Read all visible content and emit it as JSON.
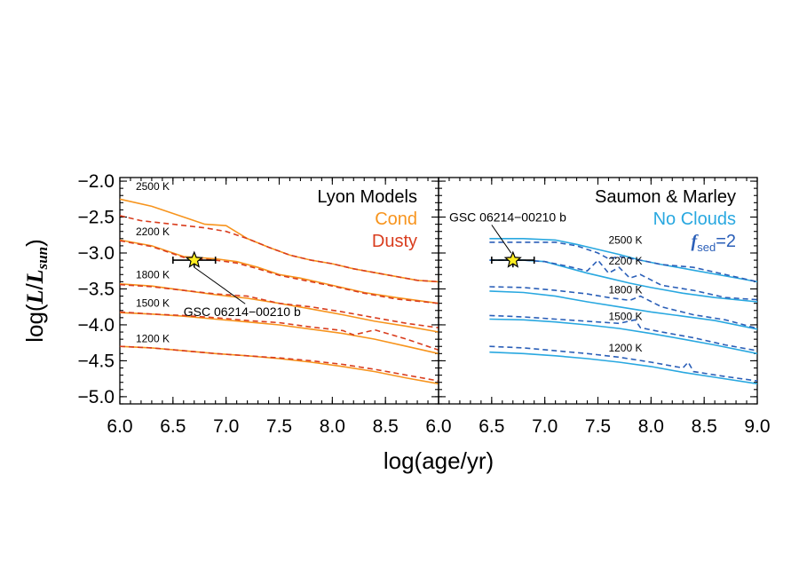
{
  "chart_data": {
    "type": "line",
    "xlabel": "log(age/yr)",
    "ylabel": "log(L/L_sun)",
    "ylabel_parts": {
      "prefix": "log(",
      "L": "L",
      "slash": "/",
      "L2": "L",
      "sub": "sun",
      "suffix": ")"
    },
    "ylim": [
      -5.1,
      -1.95
    ],
    "yticks": [
      -2.0,
      -2.5,
      -3.0,
      -3.5,
      -4.0,
      -4.5,
      -5.0
    ],
    "ytick_labels": [
      "−2.0",
      "−2.5",
      "−3.0",
      "−3.5",
      "−4.0",
      "−4.5",
      "−5.0"
    ],
    "panels": [
      {
        "title": "Lyon Models",
        "legend": [
          {
            "label": "Cond",
            "color": "#f7941d",
            "style": "solid"
          },
          {
            "label": "Dusty",
            "color": "#d93d1e",
            "style": "dashed"
          }
        ],
        "xlim": [
          6.0,
          9.0
        ],
        "xticks": [
          6.0,
          6.5,
          7.0,
          7.5,
          8.0,
          8.5
        ],
        "xtick_labels": [
          "6.0",
          "6.5",
          "7.0",
          "7.5",
          "8.0",
          "8.5"
        ],
        "temperature_labels": [
          {
            "text": "2500 K",
            "x": 6.15,
            "y": -2.12
          },
          {
            "text": "2200 K",
            "x": 6.15,
            "y": -2.75
          },
          {
            "text": "1800 K",
            "x": 6.15,
            "y": -3.35
          },
          {
            "text": "1500 K",
            "x": 6.15,
            "y": -3.75
          },
          {
            "text": "1200 K",
            "x": 6.15,
            "y": -4.24
          }
        ],
        "object": {
          "name": "GSC 06214−00210 b",
          "x": 6.7,
          "y": -3.1,
          "xerr": 0.2,
          "yerr": 0.1,
          "label_x": 6.6,
          "label_y": -3.88
        },
        "series": [
          {
            "name": "Cond",
            "temp": "2500 K",
            "style": "solid",
            "color": "#f7941d",
            "x": [
              6.0,
              6.3,
              6.6,
              6.8,
              7.0,
              7.2,
              7.4,
              7.6,
              7.8,
              8.0,
              8.2,
              8.5,
              8.8,
              9.0
            ],
            "y": [
              -2.25,
              -2.35,
              -2.5,
              -2.6,
              -2.62,
              -2.8,
              -2.92,
              -3.03,
              -3.1,
              -3.15,
              -3.22,
              -3.3,
              -3.38,
              -3.4
            ]
          },
          {
            "name": "Dusty",
            "temp": "2500 K",
            "style": "dashed",
            "color": "#d93d1e",
            "x": [
              6.0,
              6.2,
              6.5,
              6.8,
              7.0,
              7.2,
              7.4,
              7.6,
              7.8,
              8.0,
              8.2,
              8.5,
              8.8,
              9.0
            ],
            "y": [
              -2.48,
              -2.55,
              -2.6,
              -2.65,
              -2.7,
              -2.8,
              -2.92,
              -3.03,
              -3.1,
              -3.15,
              -3.22,
              -3.3,
              -3.38,
              -3.4
            ]
          },
          {
            "name": "Cond",
            "temp": "2200 K",
            "style": "solid",
            "color": "#f7941d",
            "x": [
              6.0,
              6.3,
              6.6,
              6.9,
              7.1,
              7.3,
              7.5,
              7.7,
              8.0,
              8.3,
              8.6,
              9.0
            ],
            "y": [
              -2.82,
              -2.9,
              -3.05,
              -3.08,
              -3.12,
              -3.2,
              -3.3,
              -3.35,
              -3.45,
              -3.55,
              -3.62,
              -3.7
            ]
          },
          {
            "name": "Dusty",
            "temp": "2200 K",
            "style": "dashed",
            "color": "#d93d1e",
            "x": [
              6.0,
              6.3,
              6.6,
              6.9,
              7.1,
              7.3,
              7.5,
              7.7,
              8.0,
              8.3,
              8.6,
              9.0
            ],
            "y": [
              -2.83,
              -2.91,
              -3.06,
              -3.1,
              -3.14,
              -3.22,
              -3.31,
              -3.37,
              -3.46,
              -3.56,
              -3.64,
              -3.7
            ]
          },
          {
            "name": "Cond",
            "temp": "1800 K",
            "style": "solid",
            "color": "#f7941d",
            "x": [
              6.0,
              6.3,
              6.6,
              6.9,
              7.2,
              7.5,
              7.8,
              8.1,
              8.4,
              8.7,
              9.0
            ],
            "y": [
              -3.43,
              -3.46,
              -3.52,
              -3.58,
              -3.63,
              -3.7,
              -3.78,
              -3.86,
              -3.95,
              -4.02,
              -4.1
            ]
          },
          {
            "name": "Dusty",
            "temp": "1800 K",
            "style": "dashed",
            "color": "#d93d1e",
            "x": [
              6.0,
              6.3,
              6.6,
              6.9,
              7.2,
              7.5,
              7.8,
              8.1,
              8.4,
              8.7,
              9.0
            ],
            "y": [
              -3.44,
              -3.47,
              -3.52,
              -3.57,
              -3.6,
              -3.7,
              -3.75,
              -3.82,
              -3.9,
              -3.98,
              -4.04
            ]
          },
          {
            "name": "Cond",
            "temp": "1500 K",
            "style": "solid",
            "color": "#f7941d",
            "x": [
              6.0,
              6.3,
              6.6,
              6.9,
              7.2,
              7.5,
              7.8,
              8.1,
              8.4,
              8.7,
              9.0
            ],
            "y": [
              -3.83,
              -3.85,
              -3.88,
              -3.92,
              -3.96,
              -4.0,
              -4.06,
              -4.12,
              -4.2,
              -4.3,
              -4.4
            ]
          },
          {
            "name": "Dusty",
            "temp": "1500 K",
            "style": "dashed",
            "color": "#d93d1e",
            "x": [
              6.0,
              6.3,
              6.6,
              6.9,
              7.2,
              7.5,
              7.8,
              8.1,
              8.2,
              8.4,
              8.7,
              9.0
            ],
            "y": [
              -3.82,
              -3.85,
              -3.87,
              -3.9,
              -3.94,
              -3.97,
              -4.03,
              -4.08,
              -4.14,
              -4.07,
              -4.2,
              -4.35
            ]
          },
          {
            "name": "Cond",
            "temp": "1200 K",
            "style": "solid",
            "color": "#f7941d",
            "x": [
              6.0,
              6.3,
              6.6,
              6.9,
              7.2,
              7.5,
              7.8,
              8.1,
              8.4,
              8.7,
              9.0
            ],
            "y": [
              -4.3,
              -4.32,
              -4.36,
              -4.4,
              -4.43,
              -4.47,
              -4.52,
              -4.58,
              -4.65,
              -4.74,
              -4.82
            ]
          },
          {
            "name": "Dusty",
            "temp": "1200 K",
            "style": "dashed",
            "color": "#d93d1e",
            "x": [
              6.0,
              6.3,
              6.6,
              6.9,
              7.2,
              7.5,
              7.8,
              8.1,
              8.4,
              8.7,
              9.0
            ],
            "y": [
              -4.3,
              -4.32,
              -4.36,
              -4.4,
              -4.43,
              -4.46,
              -4.5,
              -4.55,
              -4.62,
              -4.7,
              -4.78
            ]
          }
        ]
      },
      {
        "title": "Saumon & Marley",
        "legend": [
          {
            "label": "No Clouds",
            "color": "#29a8e0",
            "style": "solid"
          },
          {
            "label": "f",
            "sub": "sed",
            "suffix": "=2",
            "color": "#2b5fb8",
            "style": "dashed"
          }
        ],
        "xlim": [
          6.0,
          9.0
        ],
        "xticks": [
          6.0,
          6.5,
          7.0,
          7.5,
          8.0,
          8.5,
          9.0
        ],
        "xtick_labels": [
          "6.0",
          "6.5",
          "7.0",
          "7.5",
          "8.0",
          "8.5",
          "9.0"
        ],
        "temperature_labels": [
          {
            "text": "2500 K",
            "x": 7.6,
            "y": -2.87
          },
          {
            "text": "2200 K",
            "x": 7.6,
            "y": -3.16
          },
          {
            "text": "1800 K",
            "x": 7.6,
            "y": -3.56
          },
          {
            "text": "1500 K",
            "x": 7.6,
            "y": -3.93
          },
          {
            "text": "1200 K",
            "x": 7.6,
            "y": -4.37
          }
        ],
        "object": {
          "name": "GSC 06214−00210 b",
          "x": 6.7,
          "y": -3.1,
          "xerr": 0.2,
          "yerr": 0.1,
          "label_x": 6.1,
          "label_y": -2.56
        },
        "series": [
          {
            "name": "No Clouds",
            "temp": "2500 K",
            "style": "solid",
            "color": "#29a8e0",
            "x": [
              6.48,
              6.8,
              7.1,
              7.3,
              7.5,
              7.7,
              7.9,
              8.1,
              8.4,
              8.7,
              9.0
            ],
            "y": [
              -2.8,
              -2.8,
              -2.82,
              -2.88,
              -2.95,
              -3.02,
              -3.1,
              -3.16,
              -3.24,
              -3.32,
              -3.4
            ]
          },
          {
            "name": "fsed=2",
            "temp": "2500 K",
            "style": "dashed",
            "color": "#2b5fb8",
            "x": [
              6.48,
              6.8,
              7.1,
              7.3,
              7.5,
              7.6,
              7.7,
              7.9,
              8.1,
              8.4,
              8.7,
              9.0
            ],
            "y": [
              -2.85,
              -2.85,
              -2.85,
              -2.9,
              -3.0,
              -3.08,
              -3.05,
              -3.1,
              -3.16,
              -3.2,
              -3.3,
              -3.4
            ]
          },
          {
            "name": "No Clouds",
            "temp": "2200 K",
            "style": "solid",
            "color": "#29a8e0",
            "x": [
              6.48,
              6.8,
              7.0,
              7.2,
              7.4,
              7.6,
              7.8,
              8.0,
              8.3,
              8.6,
              9.0
            ],
            "y": [
              -3.1,
              -3.1,
              -3.12,
              -3.2,
              -3.28,
              -3.35,
              -3.42,
              -3.48,
              -3.56,
              -3.62,
              -3.68
            ]
          },
          {
            "name": "fsed=2",
            "temp": "2200 K",
            "style": "dashed",
            "color": "#2b5fb8",
            "x": [
              6.48,
              6.8,
              7.0,
              7.2,
              7.4,
              7.5,
              7.6,
              7.7,
              7.8,
              7.9,
              8.1,
              8.4,
              8.7,
              9.0
            ],
            "y": [
              -3.1,
              -3.1,
              -3.12,
              -3.18,
              -3.25,
              -3.1,
              -3.28,
              -3.2,
              -3.35,
              -3.3,
              -3.45,
              -3.52,
              -3.62,
              -3.65
            ]
          },
          {
            "name": "No Clouds",
            "temp": "1800 K",
            "style": "solid",
            "color": "#29a8e0",
            "x": [
              6.48,
              6.8,
              7.1,
              7.4,
              7.7,
              8.0,
              8.3,
              8.6,
              9.0
            ],
            "y": [
              -3.53,
              -3.55,
              -3.6,
              -3.68,
              -3.75,
              -3.82,
              -3.88,
              -3.94,
              -4.06
            ]
          },
          {
            "name": "fsed=2",
            "temp": "1800 K",
            "style": "dashed",
            "color": "#2b5fb8",
            "x": [
              6.48,
              6.8,
              7.1,
              7.4,
              7.6,
              7.8,
              7.9,
              8.1,
              8.4,
              8.7,
              9.0
            ],
            "y": [
              -3.47,
              -3.48,
              -3.52,
              -3.57,
              -3.62,
              -3.66,
              -3.6,
              -3.75,
              -3.86,
              -3.93,
              -4.05
            ]
          },
          {
            "name": "No Clouds",
            "temp": "1500 K",
            "style": "solid",
            "color": "#29a8e0",
            "x": [
              6.48,
              6.8,
              7.1,
              7.4,
              7.7,
              8.0,
              8.3,
              8.6,
              9.0
            ],
            "y": [
              -3.92,
              -3.93,
              -3.96,
              -4.0,
              -4.05,
              -4.12,
              -4.2,
              -4.28,
              -4.4
            ]
          },
          {
            "name": "fsed=2",
            "temp": "1500 K",
            "style": "dashed",
            "color": "#2b5fb8",
            "x": [
              6.48,
              6.8,
              7.1,
              7.4,
              7.7,
              7.85,
              7.9,
              8.1,
              8.4,
              8.7,
              9.0
            ],
            "y": [
              -3.87,
              -3.89,
              -3.92,
              -3.95,
              -3.98,
              -3.93,
              -4.04,
              -4.1,
              -4.18,
              -4.28,
              -4.36
            ]
          },
          {
            "name": "No Clouds",
            "temp": "1200 K",
            "style": "solid",
            "color": "#29a8e0",
            "x": [
              6.48,
              6.8,
              7.1,
              7.4,
              7.7,
              8.0,
              8.3,
              8.6,
              9.0
            ],
            "y": [
              -4.38,
              -4.4,
              -4.43,
              -4.47,
              -4.52,
              -4.58,
              -4.66,
              -4.73,
              -4.82
            ]
          },
          {
            "name": "fsed=2",
            "temp": "1200 K",
            "style": "dashed",
            "color": "#2b5fb8",
            "x": [
              6.48,
              6.8,
              7.1,
              7.4,
              7.7,
              8.0,
              8.3,
              8.35,
              8.4,
              8.7,
              9.0
            ],
            "y": [
              -4.3,
              -4.32,
              -4.36,
              -4.4,
              -4.45,
              -4.52,
              -4.6,
              -4.52,
              -4.65,
              -4.72,
              -4.78
            ]
          }
        ]
      }
    ]
  }
}
